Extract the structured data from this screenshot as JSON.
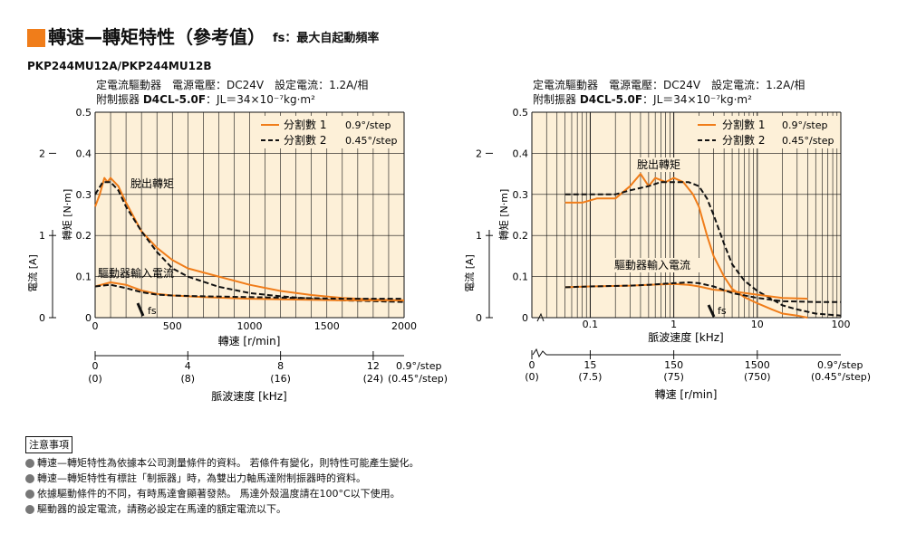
{
  "title": {
    "main": "轉速—轉矩特性（參考值）",
    "sub": "fs：最大自起動頻率"
  },
  "model": "PKP244MU12A/PKP244MU12B",
  "conditions": {
    "line1": "定電流驅動器　電源電壓：DC24V　設定電流：1.2A/相",
    "line2_prefix": "附制振器",
    "line2_bold": "D4CL-5.0F",
    "line2_suffix": "：JL＝34×10⁻⁷kg·m²"
  },
  "colors": {
    "orange": "#f07d1a",
    "background": "#fdf0d8",
    "grid": "#111111"
  },
  "left": {
    "ylabel_torque": "轉矩 [N·m]",
    "ylabel_current": "電流 [A]",
    "xlabel_speed": "轉速 [r/min]",
    "xlabel_pulse": "脈波速度 [kHz]",
    "ann_pullout": "脫出轉矩",
    "ann_current": "驅動器輸入電流",
    "ann_fs": "fs",
    "legend": [
      {
        "label": "分割數 1",
        "step": "0.9°/step"
      },
      {
        "label": "分割數 2",
        "step": "0.45°/step"
      }
    ],
    "torque_ticks": [
      "0",
      "0.1",
      "0.2",
      "0.3",
      "0.4",
      "0.5"
    ],
    "current_ticks": [
      "0",
      "1",
      "2"
    ],
    "speed_ticks": [
      "0",
      "500",
      "1000",
      "1500",
      "2000"
    ],
    "pulse_ticks": [
      "0",
      "4",
      "8",
      "12"
    ],
    "pulse_ticks_paren": [
      "(0)",
      "(8)",
      "(16)",
      "(24)"
    ],
    "pulse_step_1": "0.9°/step",
    "pulse_step_2": "(0.45°/step)"
  },
  "right": {
    "ylabel_torque": "轉矩 [N·m]",
    "ylabel_current": "電流 [A]",
    "xlabel_pulse": "脈波速度 [kHz]",
    "xlabel_speed": "轉速 [r/min]",
    "ann_pullout": "脫出轉矩",
    "ann_current": "驅動器輸入電流",
    "ann_fs": "fs",
    "legend": [
      {
        "label": "分割數 1",
        "step": "0.9°/step"
      },
      {
        "label": "分割數 2",
        "step": "0.45°/step"
      }
    ],
    "torque_ticks": [
      "0",
      "0.1",
      "0.2",
      "0.3",
      "0.4",
      "0.5"
    ],
    "current_ticks": [
      "0",
      "1",
      "2"
    ],
    "pulse_ticks": [
      "0.1",
      "1",
      "10",
      "100"
    ],
    "speed_ticks": [
      "0",
      "15",
      "150",
      "1500"
    ],
    "speed_ticks_paren": [
      "(0)",
      "(7.5)",
      "(75)",
      "(750)"
    ],
    "speed_step_1": "0.9°/step",
    "speed_step_2": "(0.45°/step)"
  },
  "chart_data": [
    {
      "type": "line",
      "xlabel": "轉速 [r/min]",
      "ylabel": "轉矩 [N·m]",
      "xlim": [
        0,
        2000
      ],
      "ylim": [
        0,
        0.5
      ],
      "secondary_ylabel": "電流 [A]",
      "secondary_ylim": [
        0,
        2.5
      ],
      "series": [
        {
          "name": "分割數 1 0.9°/step",
          "kind": "torque",
          "x": [
            0,
            30,
            60,
            80,
            100,
            150,
            200,
            300,
            400,
            500,
            600,
            800,
            1000,
            1200,
            1400,
            1600,
            1800,
            2000
          ],
          "values": [
            0.27,
            0.3,
            0.34,
            0.33,
            0.34,
            0.32,
            0.28,
            0.21,
            0.17,
            0.14,
            0.12,
            0.1,
            0.08,
            0.065,
            0.055,
            0.048,
            0.044,
            0.042
          ]
        },
        {
          "name": "分割數 2 0.45°/step",
          "kind": "torque",
          "x": [
            0,
            50,
            100,
            150,
            200,
            300,
            400,
            500,
            600,
            800,
            1000,
            1200,
            1400,
            1600,
            1800,
            2000
          ],
          "values": [
            0.3,
            0.33,
            0.33,
            0.31,
            0.27,
            0.21,
            0.16,
            0.12,
            0.1,
            0.075,
            0.06,
            0.052,
            0.046,
            0.042,
            0.04,
            0.038
          ]
        },
        {
          "name": "分割數 1 0.9°/step",
          "kind": "current",
          "x": [
            0,
            100,
            200,
            300,
            400,
            500,
            700,
            1000,
            1300,
            1600,
            2000
          ],
          "values": [
            0.38,
            0.43,
            0.4,
            0.33,
            0.29,
            0.27,
            0.25,
            0.23,
            0.22,
            0.21,
            0.21
          ]
        },
        {
          "name": "分割數 2 0.45°/step",
          "kind": "current",
          "x": [
            0,
            100,
            200,
            300,
            400,
            500,
            700,
            1000,
            1300,
            1600,
            2000
          ],
          "values": [
            0.38,
            0.4,
            0.36,
            0.31,
            0.28,
            0.27,
            0.26,
            0.25,
            0.24,
            0.23,
            0.23
          ]
        }
      ]
    },
    {
      "type": "line",
      "xlabel": "脈波速度 [kHz]",
      "ylabel": "轉矩 [N·m]",
      "xscale": "log",
      "xlim": [
        0.02,
        100
      ],
      "ylim": [
        0,
        0.5
      ],
      "secondary_ylabel": "電流 [A]",
      "secondary_ylim": [
        0,
        2.5
      ],
      "series": [
        {
          "name": "分割數 1 0.9°/step",
          "kind": "torque",
          "x": [
            0.05,
            0.08,
            0.12,
            0.2,
            0.3,
            0.4,
            0.5,
            0.6,
            0.8,
            1,
            1.3,
            1.7,
            2,
            2.5,
            3,
            4,
            5,
            7,
            10,
            15,
            20,
            30,
            40
          ],
          "values": [
            0.28,
            0.28,
            0.29,
            0.29,
            0.32,
            0.35,
            0.32,
            0.34,
            0.33,
            0.34,
            0.33,
            0.3,
            0.27,
            0.2,
            0.15,
            0.1,
            0.07,
            0.05,
            0.035,
            0.02,
            0.01,
            0.005,
            0
          ]
        },
        {
          "name": "分割數 2 0.45°/step",
          "kind": "torque",
          "x": [
            0.05,
            0.1,
            0.2,
            0.3,
            0.5,
            0.7,
            1,
            1.5,
            2,
            2.5,
            3,
            4,
            5,
            7,
            10,
            15,
            20,
            30,
            50,
            100
          ],
          "values": [
            0.3,
            0.3,
            0.3,
            0.31,
            0.32,
            0.33,
            0.33,
            0.33,
            0.32,
            0.29,
            0.25,
            0.18,
            0.13,
            0.09,
            0.065,
            0.045,
            0.03,
            0.02,
            0.01,
            0.005
          ]
        },
        {
          "name": "分割數 1 0.9°/step",
          "kind": "current",
          "x": [
            0.05,
            0.1,
            0.3,
            0.5,
            1,
            1.5,
            2,
            3,
            5,
            10,
            20,
            40
          ],
          "values": [
            0.37,
            0.38,
            0.39,
            0.4,
            0.41,
            0.4,
            0.38,
            0.34,
            0.32,
            0.28,
            0.24,
            0.23
          ]
        },
        {
          "name": "分割數 2 0.45°/step",
          "kind": "current",
          "x": [
            0.05,
            0.1,
            0.3,
            0.5,
            1,
            1.5,
            2,
            3,
            5,
            10,
            20,
            50,
            100
          ],
          "values": [
            0.37,
            0.38,
            0.39,
            0.4,
            0.42,
            0.43,
            0.42,
            0.38,
            0.3,
            0.24,
            0.2,
            0.19,
            0.19
          ]
        }
      ]
    }
  ],
  "notes": {
    "title": "注意事項",
    "items": [
      "轉速—轉矩特性為依據本公司測量條件的資料。 若條件有變化，則特性可能產生變化。",
      "轉速—轉矩特性有標註「制振器」時，為雙出力軸馬達附制振器時的資料。",
      "依據驅動條件的不同，有時馬達會顯著發熱。 馬達外殼溫度請在100°C以下使用。",
      "驅動器的設定電流，請務必設定在馬達的額定電流以下。"
    ]
  }
}
